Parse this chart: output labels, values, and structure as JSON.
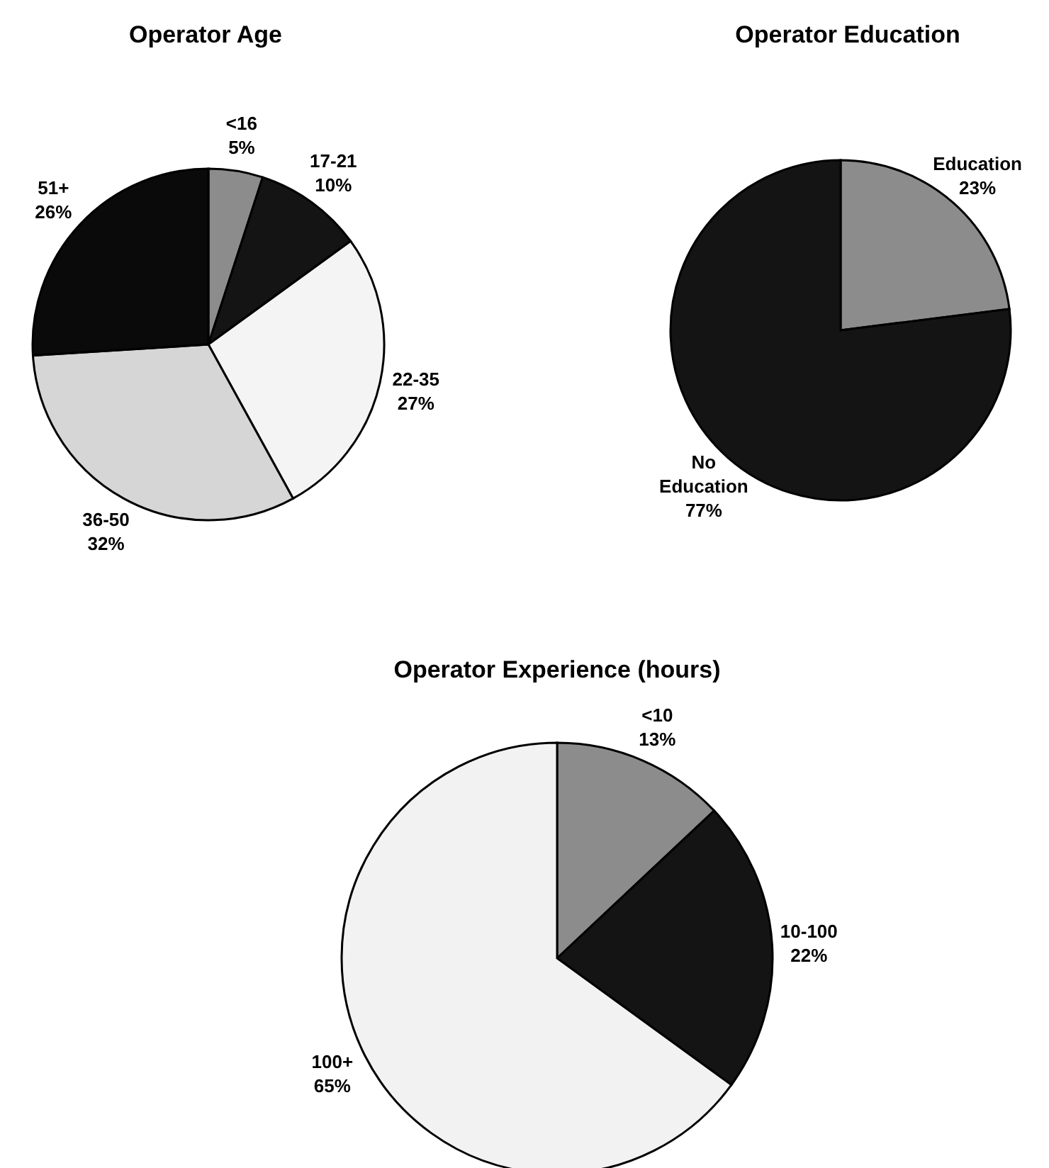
{
  "chart_data": [
    {
      "type": "pie",
      "title": "Operator Age",
      "categories": [
        "<16",
        "17-21",
        "22-35",
        "36-50",
        "51+"
      ],
      "values": [
        5,
        10,
        27,
        32,
        26
      ],
      "colors": [
        "#8c8c8c",
        "#141414",
        "#f4f4f4",
        "#d6d6d6",
        "#0a0a0a"
      ],
      "value_labels": [
        "5%",
        "10%",
        "27%",
        "32%",
        "26%"
      ]
    },
    {
      "type": "pie",
      "title": "Operator Education",
      "categories": [
        "Education",
        "No Education"
      ],
      "values": [
        23,
        77
      ],
      "colors": [
        "#8c8c8c",
        "#141414"
      ],
      "value_labels": [
        "23%",
        "77%"
      ]
    },
    {
      "type": "pie",
      "title": "Operator Experience (hours)",
      "categories": [
        "<10",
        "10-100",
        "100+"
      ],
      "values": [
        13,
        22,
        65
      ],
      "colors": [
        "#8c8c8c",
        "#141414",
        "#f2f2f2"
      ],
      "value_labels": [
        "13%",
        "22%",
        "65%"
      ]
    }
  ]
}
